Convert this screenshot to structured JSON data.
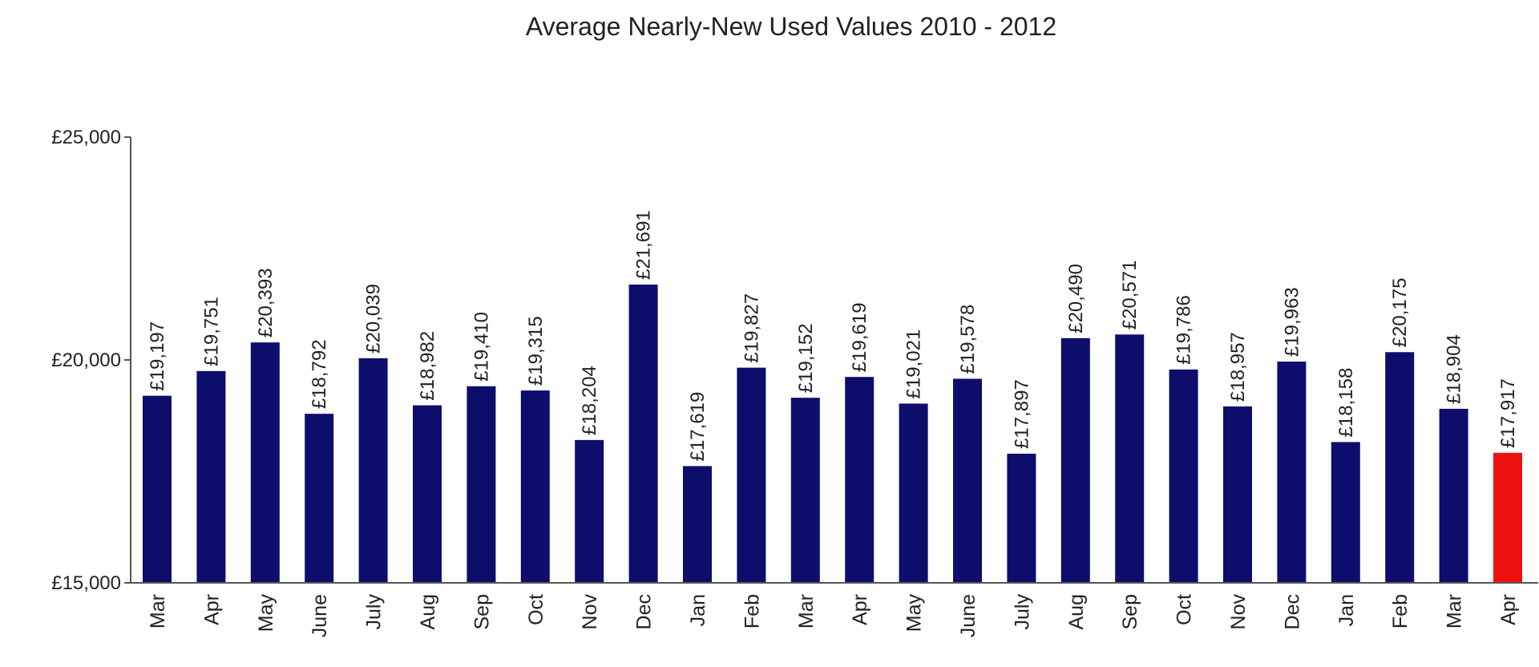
{
  "chart_data": {
    "type": "bar",
    "title": "Average Nearly-New Used Values 2010 - 2012",
    "xlabel": "",
    "ylabel": "",
    "ylim": [
      15000,
      25000
    ],
    "yticks": [
      {
        "value": 15000,
        "label": "£15,000"
      },
      {
        "value": 20000,
        "label": "£20,000"
      },
      {
        "value": 25000,
        "label": "£25,000"
      }
    ],
    "grid": false,
    "legend": "none",
    "bar_color": "#0d0d6b",
    "highlight_color": "#ee1111",
    "categories": [
      "Mar",
      "Apr",
      "May",
      "June",
      "July",
      "Aug",
      "Sep",
      "Oct",
      "Nov",
      "Dec",
      "Jan",
      "Feb",
      "Mar",
      "Apr",
      "May",
      "June",
      "July",
      "Aug",
      "Sep",
      "Oct",
      "Nov",
      "Dec",
      "Jan",
      "Feb",
      "Mar",
      "Apr"
    ],
    "values": [
      19197,
      19751,
      20393,
      18792,
      20039,
      18982,
      19410,
      19315,
      18204,
      21691,
      17619,
      19827,
      19152,
      19619,
      19021,
      19578,
      17897,
      20490,
      20571,
      19786,
      18957,
      19963,
      18158,
      20175,
      18904,
      17917
    ],
    "data_labels": [
      "£19,197",
      "£19,751",
      "£20,393",
      "£18,792",
      "£20,039",
      "£18,982",
      "£19,410",
      "£19,315",
      "£18,204",
      "£21,691",
      "£17,619",
      "£19,827",
      "£19,152",
      "£19,619",
      "£19,021",
      "£19,578",
      "£17,897",
      "£20,490",
      "£20,571",
      "£19,786",
      "£18,957",
      "£19,963",
      "£18,158",
      "£20,175",
      "£18,904",
      "£17,917"
    ],
    "highlight_index": 25
  }
}
